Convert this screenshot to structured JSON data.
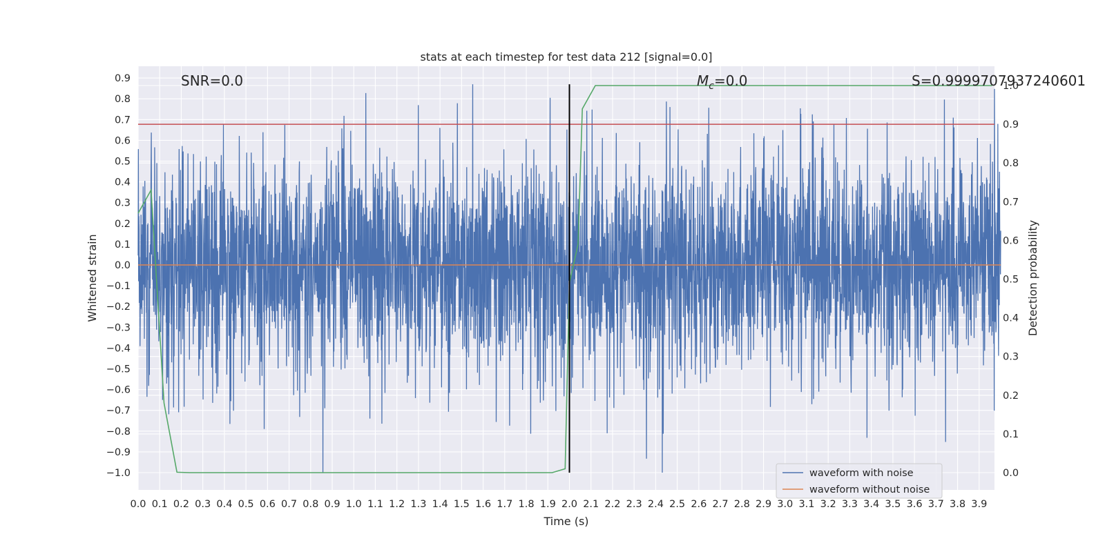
{
  "chart_data": {
    "type": "line",
    "title": "stats at each timestep for test data 212 [signal=0.0]",
    "xlabel": "Time (s)",
    "ylabel": "Whitened strain",
    "y2label": "Detection probability",
    "xlim": [
      0.0,
      4.0
    ],
    "ylim": [
      -1.09,
      0.96
    ],
    "y2lim": [
      -0.05,
      1.05
    ],
    "xticks": [
      "0.0",
      "0.1",
      "0.2",
      "0.3",
      "0.4",
      "0.5",
      "0.6",
      "0.7",
      "0.8",
      "0.9",
      "1.0",
      "1.1",
      "1.2",
      "1.3",
      "1.4",
      "1.5",
      "1.6",
      "1.7",
      "1.8",
      "1.9",
      "2.0",
      "2.1",
      "2.2",
      "2.3",
      "2.4",
      "2.5",
      "2.6",
      "2.7",
      "2.8",
      "2.9",
      "3.0",
      "3.1",
      "3.2",
      "3.3",
      "3.4",
      "3.5",
      "3.6",
      "3.7",
      "3.8",
      "3.9"
    ],
    "yticks": [
      "0.9",
      "0.8",
      "0.7",
      "0.6",
      "0.5",
      "0.4",
      "0.3",
      "0.2",
      "0.1",
      "0.0",
      "−0.1",
      "−0.2",
      "−0.3",
      "−0.4",
      "−0.5",
      "−0.6",
      "−0.7",
      "−0.8",
      "−0.9",
      "−1.0"
    ],
    "y2ticks": [
      "1.0",
      "0.9",
      "0.8",
      "0.7",
      "0.6",
      "0.5",
      "0.4",
      "0.3",
      "0.2",
      "0.1",
      "0.0"
    ],
    "annotations": {
      "snr": "SNR=0.0",
      "mc_symbol": "M",
      "mc_sub": "c",
      "mc_value": "=0.0",
      "s": "S=0.9999707937240601"
    },
    "legend": [
      "waveform with noise",
      "waveform without noise"
    ],
    "legend_position": "lower-right",
    "colors": {
      "noisy": "#4c72b0",
      "clean": "#dd8452",
      "probability": "#55a868",
      "threshold": "#c44e52",
      "marker": "#000000",
      "plot_bg": "#eaeaf2",
      "grid": "#ffffff"
    },
    "threshold_value": 0.9,
    "marker_time": 2.0,
    "marker_range": [
      -1.0,
      0.87
    ],
    "noise_amplitude": {
      "typical": 0.45,
      "min": -1.0,
      "max": 0.87,
      "seed": 212
    },
    "clean_waveform": {
      "x": [
        0.0,
        4.0
      ],
      "y": [
        0.0,
        0.0
      ]
    },
    "series": [
      {
        "name": "detection probability",
        "axis": "y2",
        "x": [
          0.0,
          0.06,
          0.12,
          0.18,
          0.24,
          0.3,
          0.36,
          0.42,
          0.48,
          0.54,
          0.6,
          0.66,
          0.72,
          0.78,
          0.84,
          0.9,
          0.96,
          1.02,
          1.08,
          1.14,
          1.2,
          1.26,
          1.32,
          1.38,
          1.44,
          1.5,
          1.56,
          1.62,
          1.68,
          1.74,
          1.8,
          1.86,
          1.92,
          1.98,
          2.0,
          2.04,
          2.06,
          2.12,
          2.18,
          2.24,
          2.3,
          2.4,
          2.6,
          2.8,
          3.0,
          3.2,
          3.4,
          3.6,
          3.8,
          3.96
        ],
        "y": [
          0.67,
          0.73,
          0.18,
          0.001,
          0.0,
          0.0,
          0.0,
          0.0,
          0.0,
          0.0,
          0.0,
          0.0,
          0.0,
          0.0,
          0.0,
          0.0,
          0.0,
          0.0,
          0.0,
          0.0,
          0.0,
          0.0,
          0.0,
          0.0,
          0.0,
          0.0,
          0.0,
          0.0,
          0.0,
          0.0,
          0.0,
          0.0,
          0.0,
          0.01,
          0.49,
          0.59,
          0.94,
          1.0,
          1.0,
          1.0,
          1.0,
          1.0,
          1.0,
          1.0,
          1.0,
          1.0,
          1.0,
          1.0,
          1.0,
          1.0
        ]
      }
    ]
  }
}
